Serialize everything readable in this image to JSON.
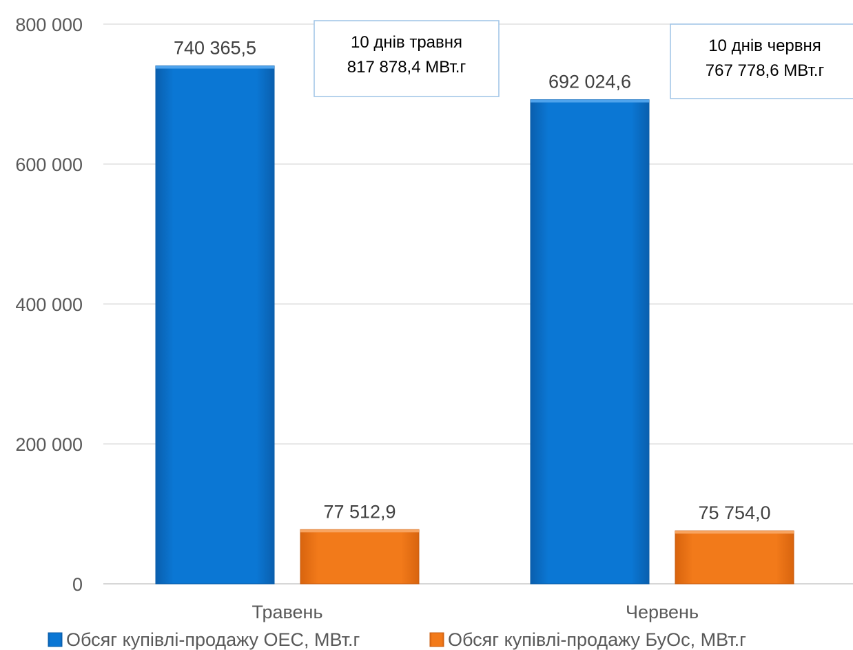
{
  "chart_data": {
    "type": "bar",
    "categories": [
      "Травень",
      "Червень"
    ],
    "series": [
      {
        "name": "Обсяг купівлі-продажу ОЕС, МВт.г",
        "values": [
          740365.5,
          692024.6
        ],
        "labels": [
          "740 365,5",
          "692 024,6"
        ],
        "color": "#0A74D0"
      },
      {
        "name": "Обсяг купівлі-продажу БуОс, МВт.г",
        "values": [
          77512.9,
          75754.0
        ],
        "labels": [
          "77 512,9",
          "75 754,0"
        ],
        "color": "#F07818"
      }
    ],
    "ylim": [
      0,
      800000
    ],
    "yticks": [
      {
        "value": 0,
        "label": "0"
      },
      {
        "value": 200000,
        "label": "200 000"
      },
      {
        "value": 400000,
        "label": "400 000"
      },
      {
        "value": 600000,
        "label": "600 000"
      },
      {
        "value": 800000,
        "label": "800 000"
      }
    ],
    "grid": true,
    "legend_position": "bottom",
    "annotations": [
      {
        "category": "Травень",
        "line1": "10 днів травня",
        "line2": "817 878,4 МВт.г"
      },
      {
        "category": "Червень",
        "line1": "10 днів червня",
        "line2": "767 778,6 МВт.г"
      }
    ],
    "colors": {
      "grid": "#D9D9D9",
      "axis": "#BFBFBF",
      "callout_border": "#9DC3E6"
    }
  }
}
